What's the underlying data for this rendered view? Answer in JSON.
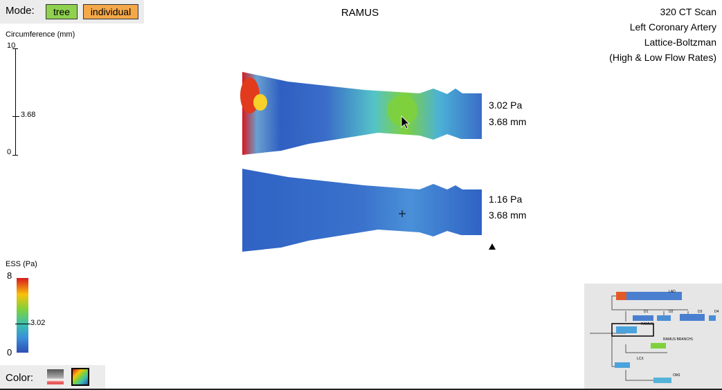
{
  "mode": {
    "label": "Mode:",
    "tree": "tree",
    "individual": "individual"
  },
  "title": "RAMUS",
  "info": [
    "320 CT Scan",
    "Left Coronary Artery",
    "Lattice-Boltzman",
    "(High & Low Flow Rates)"
  ],
  "circumference_axis": {
    "label": "Circumference (mm)",
    "max": "10",
    "marker": "3.68",
    "min": "0"
  },
  "ess_axis": {
    "label": "ESS (Pa)",
    "max": "8",
    "marker": "3.02",
    "min": "0"
  },
  "vessel_high": {
    "pressure": "3.02 Pa",
    "diameter": "3.68 mm"
  },
  "vessel_low": {
    "pressure": "1.16 Pa",
    "diameter": "3.68 mm"
  },
  "color": {
    "label": "Color:"
  },
  "minimap": {
    "labels": [
      "LAD",
      "D1",
      "D2",
      "D3",
      "D4",
      "RAMUS",
      "RAMUS BRANCH1",
      "LCX",
      "OM1"
    ]
  },
  "colors": {
    "tree_button": "#8fd14f",
    "individual_button": "#f4a84a",
    "low_ess": "#2d4fb3",
    "high_ess": "#d7191c",
    "mid_ess": "#7fd13b"
  }
}
